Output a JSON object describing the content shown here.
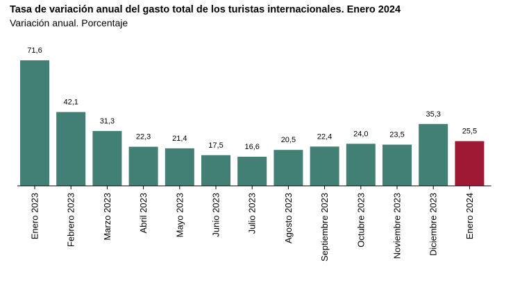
{
  "header": {
    "title": "Tasa de variación anual del gasto total de los turistas internacionales. Enero 2024",
    "subtitle": "Variación anual. Porcentaje"
  },
  "colors": {
    "bar": "#427f74",
    "highlight": "#a01934",
    "axis": "#000000"
  },
  "chart_data": {
    "type": "bar",
    "title": "Tasa de variación anual del gasto total de los turistas internacionales. Enero 2024",
    "subtitle": "Variación anual. Porcentaje",
    "categories": [
      "Enero 2023",
      "Febrero 2023",
      "Marzo 2023",
      "Abril 2023",
      "Mayo 2023",
      "Junio 2023",
      "Julio 2023",
      "Agosto 2023",
      "Septiembre 2023",
      "Octubre 2023",
      "Noviembre 2023",
      "Diciembre 2023",
      "Enero 2024"
    ],
    "values": [
      71.6,
      42.1,
      31.3,
      22.3,
      21.4,
      17.5,
      16.6,
      20.5,
      22.4,
      24.0,
      23.5,
      35.3,
      25.5
    ],
    "data_labels": [
      "71,6",
      "42,1",
      "31,3",
      "22,3",
      "21,4",
      "17,5",
      "16,6",
      "20,5",
      "22,4",
      "24,0",
      "23,5",
      "35,3",
      "25,5"
    ],
    "highlight_index": 12,
    "ylim": [
      0,
      72
    ],
    "grid": false,
    "legend": "none"
  }
}
